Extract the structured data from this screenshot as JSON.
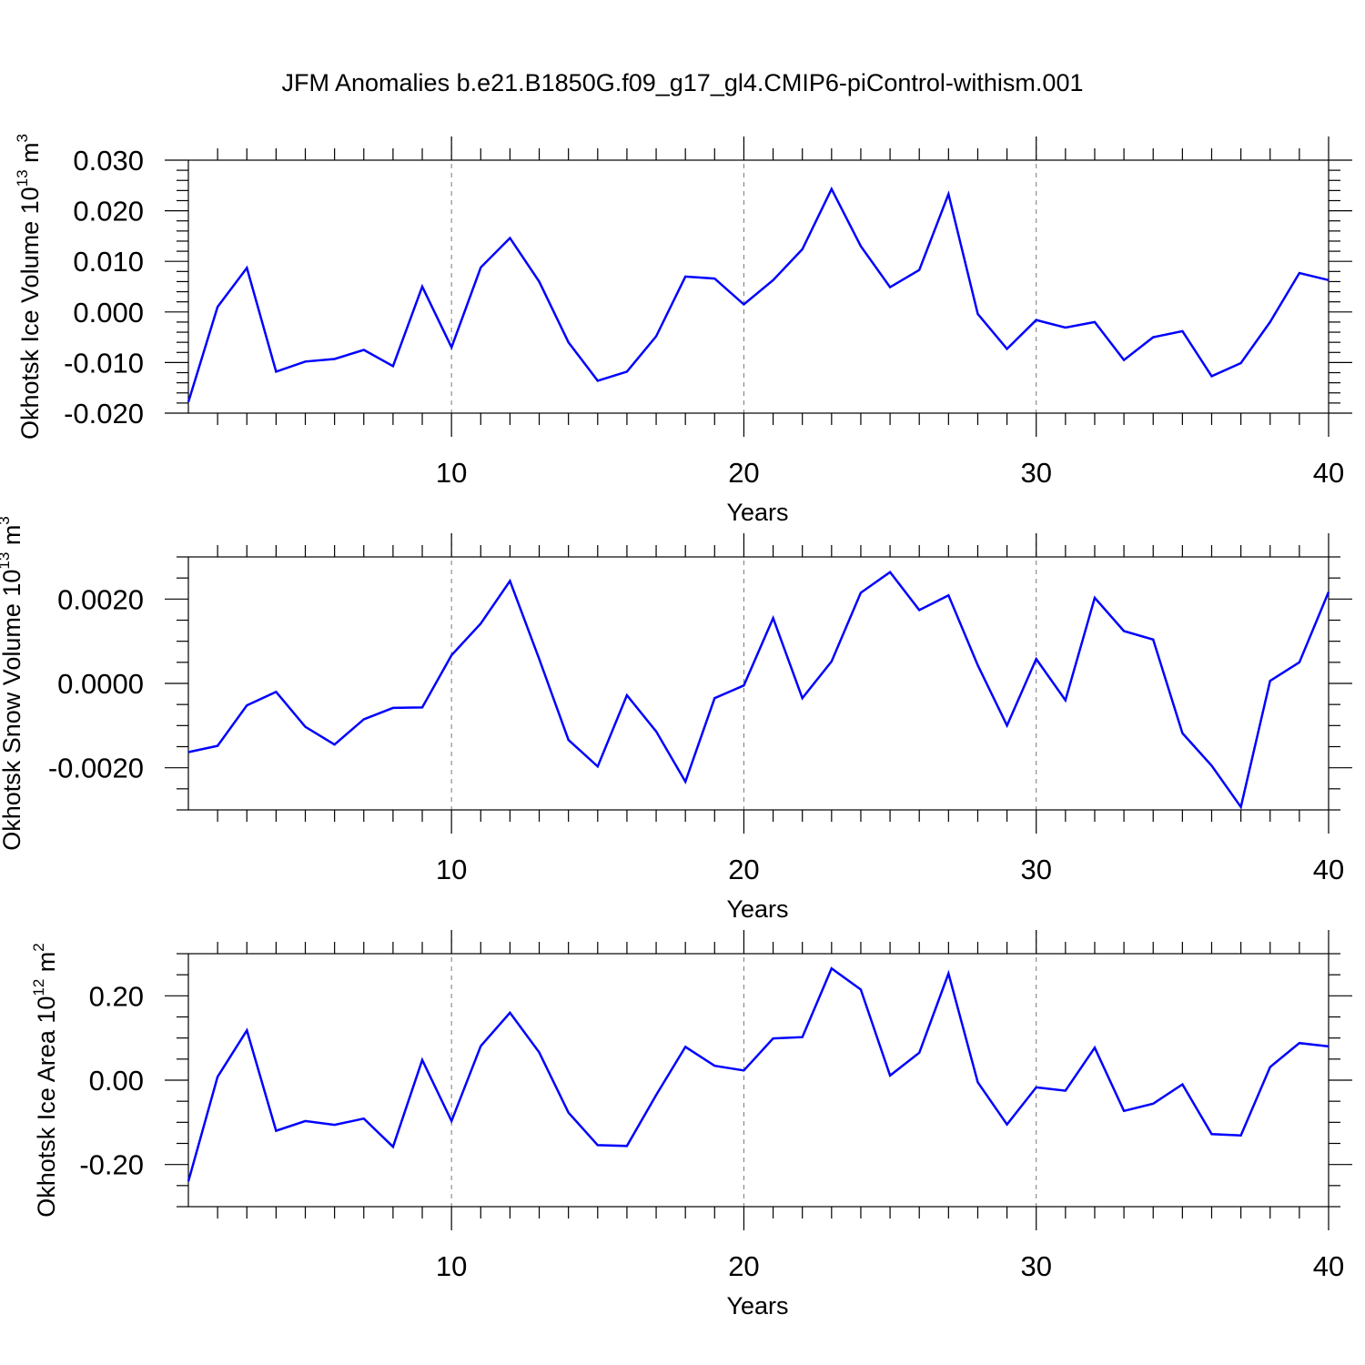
{
  "figure": {
    "title": "JFM Anomalies b.e21.B1850G.f09_g17_gl4.CMIP6-piControl-withism.001"
  },
  "chart_data": [
    {
      "type": "line",
      "name": "ice-volume",
      "ylabel": "Okhotsk Ice Volume 10",
      "ylabel_exp": "13",
      "ylabel_unit": "m",
      "ylabel_unit_exp": "3",
      "xlabel": "Years",
      "xlim": [
        1,
        40
      ],
      "ylim": [
        -0.02,
        0.03
      ],
      "x_ticks": [
        10,
        20,
        30,
        40
      ],
      "x_tick_labels": [
        "10",
        "20",
        "30",
        "40"
      ],
      "y_ticks": [
        -0.02,
        -0.01,
        0.0,
        0.01,
        0.02,
        0.03
      ],
      "y_tick_labels": [
        "-0.020",
        "-0.010",
        "0.000",
        "0.010",
        "0.020",
        "0.030"
      ],
      "y_minor_step": 0.002,
      "grid_x": [
        10,
        20,
        30
      ],
      "color": "#0000ff",
      "x": [
        1,
        2,
        3,
        4,
        5,
        6,
        7,
        8,
        9,
        10,
        11,
        12,
        13,
        14,
        15,
        16,
        17,
        18,
        19,
        20,
        21,
        22,
        23,
        24,
        25,
        26,
        27,
        28,
        29,
        30,
        31,
        32,
        33,
        34,
        35,
        36,
        37,
        38,
        39,
        40
      ],
      "values": [
        -0.0178,
        0.001,
        0.0087,
        -0.0118,
        -0.0098,
        -0.0093,
        -0.0075,
        -0.0107,
        0.005,
        -0.007,
        0.0088,
        0.0146,
        0.006,
        -0.006,
        -0.0136,
        -0.0118,
        -0.0048,
        0.007,
        0.0066,
        0.0015,
        0.0063,
        0.0124,
        0.0243,
        0.013,
        0.0049,
        0.0083,
        0.0233,
        -0.0004,
        -0.0073,
        -0.0016,
        -0.0031,
        -0.002,
        -0.0095,
        -0.005,
        -0.0038,
        -0.0127,
        -0.0101,
        -0.002,
        0.0077,
        0.0063
      ]
    },
    {
      "type": "line",
      "name": "snow-volume",
      "ylabel": "Okhotsk Snow Volume 10",
      "ylabel_exp": "13",
      "ylabel_unit": "m",
      "ylabel_unit_exp": "3",
      "xlabel": "Years",
      "xlim": [
        1,
        40
      ],
      "ylim": [
        -0.003,
        0.003
      ],
      "x_ticks": [
        10,
        20,
        30,
        40
      ],
      "x_tick_labels": [
        "10",
        "20",
        "30",
        "40"
      ],
      "y_ticks": [
        -0.002,
        0.0,
        0.002
      ],
      "y_tick_labels": [
        "-0.0020",
        "0.0000",
        "0.0020"
      ],
      "y_minor_step": 0.0005,
      "grid_x": [
        10,
        20,
        30
      ],
      "color": "#0000ff",
      "x": [
        1,
        2,
        3,
        4,
        5,
        6,
        7,
        8,
        9,
        10,
        11,
        12,
        13,
        14,
        15,
        16,
        17,
        18,
        19,
        20,
        21,
        22,
        23,
        24,
        25,
        26,
        27,
        28,
        29,
        30,
        31,
        32,
        33,
        34,
        35,
        36,
        37,
        38,
        39,
        40
      ],
      "values": [
        -0.00163,
        -0.00148,
        -0.00052,
        -0.0002,
        -0.00103,
        -0.00145,
        -0.00085,
        -0.00058,
        -0.00057,
        0.00067,
        0.00142,
        0.00243,
        0.00058,
        -0.00134,
        -0.00197,
        -0.00028,
        -0.00114,
        -0.00233,
        -0.00035,
        -5e-05,
        0.00155,
        -0.00035,
        0.00052,
        0.00215,
        0.00264,
        0.00174,
        0.00209,
        0.00043,
        -0.001,
        0.00058,
        -0.0004,
        0.00203,
        0.00124,
        0.00104,
        -0.00118,
        -0.00195,
        -0.00293,
        6e-05,
        0.0005,
        0.00217
      ]
    },
    {
      "type": "line",
      "name": "ice-area",
      "ylabel": "Okhotsk Ice Area 10",
      "ylabel_exp": "12",
      "ylabel_unit": "m",
      "ylabel_unit_exp": "2",
      "xlabel": "Years",
      "xlim": [
        1,
        40
      ],
      "ylim": [
        -0.3,
        0.3
      ],
      "x_ticks": [
        10,
        20,
        30,
        40
      ],
      "x_tick_labels": [
        "10",
        "20",
        "30",
        "40"
      ],
      "y_ticks": [
        -0.2,
        0.0,
        0.2
      ],
      "y_tick_labels": [
        "-0.20",
        "0.00",
        "0.20"
      ],
      "y_minor_step": 0.05,
      "grid_x": [
        10,
        20,
        30
      ],
      "color": "#0000ff",
      "x": [
        1,
        2,
        3,
        4,
        5,
        6,
        7,
        8,
        9,
        10,
        11,
        12,
        13,
        14,
        15,
        16,
        17,
        18,
        19,
        20,
        21,
        22,
        23,
        24,
        25,
        26,
        27,
        28,
        29,
        30,
        31,
        32,
        33,
        34,
        35,
        36,
        37,
        38,
        39,
        40
      ],
      "values": [
        -0.24,
        0.008,
        0.118,
        -0.12,
        -0.097,
        -0.106,
        -0.091,
        -0.158,
        0.048,
        -0.097,
        0.081,
        0.16,
        0.066,
        -0.077,
        -0.154,
        -0.156,
        -0.035,
        0.079,
        0.034,
        0.023,
        0.099,
        0.102,
        0.265,
        0.215,
        0.011,
        0.065,
        0.253,
        -0.005,
        -0.105,
        -0.017,
        -0.025,
        0.077,
        -0.073,
        -0.056,
        -0.01,
        -0.128,
        -0.131,
        0.031,
        0.088,
        0.08
      ]
    }
  ]
}
